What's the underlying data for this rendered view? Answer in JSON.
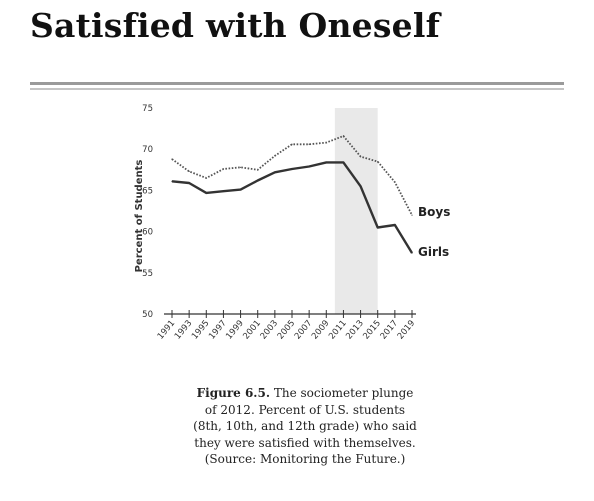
{
  "page": {
    "title": "Satisfied with Oneself"
  },
  "caption": {
    "label": "Figure 6.5.",
    "lines": [
      "The sociometer plunge",
      "of 2012. Percent of U.S. students",
      "(8th, 10th, and 12th grade) who said",
      "they were satisfied with themselves.",
      "(Source: Monitoring the Future.)"
    ]
  },
  "colors": {
    "boys": "#555555",
    "girls": "#333333",
    "highlight": "#e9e9e9",
    "axis": "#333333"
  },
  "chart_data": {
    "type": "line",
    "title": "",
    "xlabel": "",
    "ylabel": "Percent of Students",
    "xlim": [
      1991,
      2019
    ],
    "ylim": [
      50,
      75
    ],
    "yticks": [
      50,
      55,
      60,
      65,
      70,
      75
    ],
    "xtick_labels": [
      "1991",
      "1993",
      "1995",
      "1997",
      "1999",
      "2001",
      "2003",
      "2005",
      "2007",
      "2009",
      "2011",
      "2013",
      "2015",
      "2017",
      "2019"
    ],
    "highlight_range": [
      2010,
      2015
    ],
    "grid": false,
    "legend": "inline labels at right end of lines",
    "series": [
      {
        "name": "Boys",
        "style": "dotted",
        "x": [
          1991,
          1993,
          1995,
          1997,
          1999,
          2001,
          2003,
          2005,
          2007,
          2009,
          2011,
          2013,
          2015,
          2017,
          2019
        ],
        "values": [
          68.8,
          67.3,
          66.5,
          67.6,
          67.8,
          67.5,
          69.2,
          70.6,
          70.6,
          70.8,
          71.6,
          69.1,
          68.5,
          66.0,
          62.0
        ]
      },
      {
        "name": "Girls",
        "style": "solid",
        "x": [
          1991,
          1993,
          1995,
          1997,
          1999,
          2001,
          2003,
          2005,
          2007,
          2009,
          2011,
          2013,
          2015,
          2017,
          2019
        ],
        "values": [
          66.1,
          65.9,
          64.7,
          64.9,
          65.1,
          66.2,
          67.2,
          67.6,
          67.9,
          68.4,
          68.4,
          65.5,
          60.5,
          60.8,
          57.4
        ]
      }
    ]
  }
}
